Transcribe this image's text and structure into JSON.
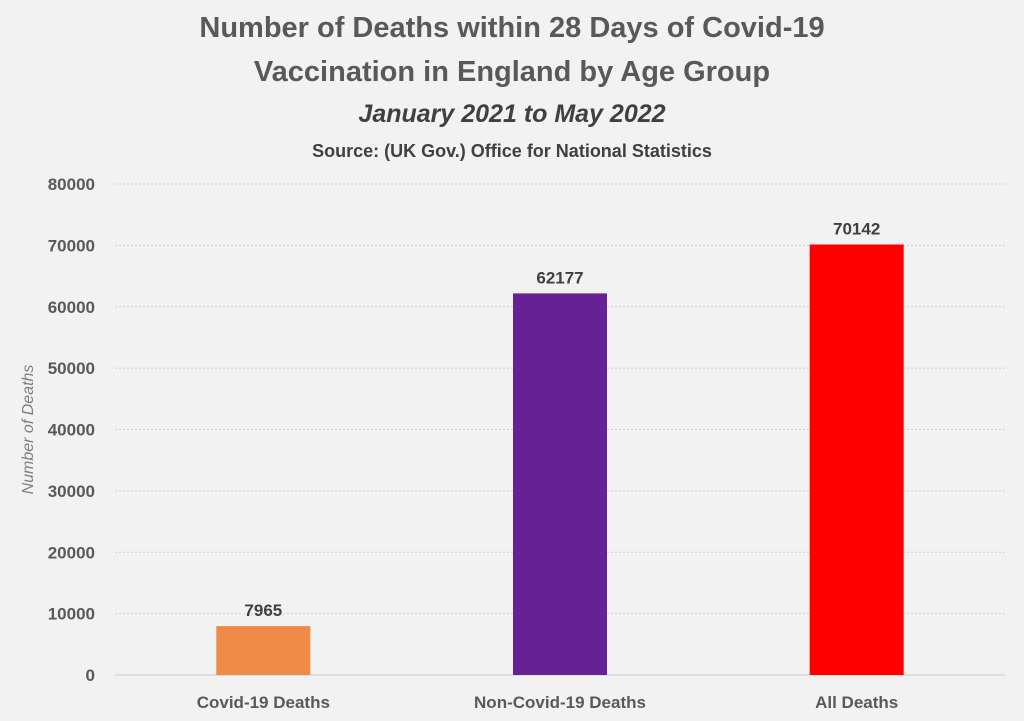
{
  "chart_data": {
    "type": "bar",
    "title": "Number of Deaths within 28 Days of Covid-19",
    "title_line2": "Vaccination in England by Age Group",
    "subtitle": "January 2021 to May 2022",
    "source": "Source: (UK Gov.) Office for National Statistics",
    "xlabel": "",
    "ylabel": "Number of Deaths",
    "categories": [
      "Covid-19 Deaths",
      "Non-Covid-19 Deaths",
      "All Deaths"
    ],
    "values": [
      7965,
      62177,
      70142
    ],
    "data_labels": [
      "7965",
      "62177",
      "70142"
    ],
    "colors": [
      "#f08a47",
      "#652294",
      "#ff0000"
    ],
    "ylim": [
      0,
      80000
    ],
    "yticks": [
      0,
      10000,
      20000,
      30000,
      40000,
      50000,
      60000,
      70000,
      80000
    ],
    "grid": true,
    "legend": "none"
  }
}
